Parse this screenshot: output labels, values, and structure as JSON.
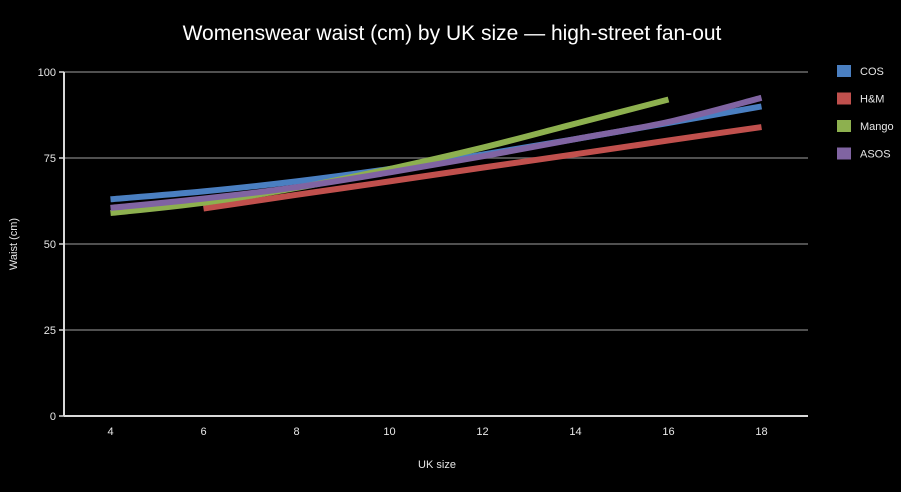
{
  "chart_data": {
    "type": "line",
    "title": "Womenswear waist (cm) by UK size — high-street fan-out",
    "xlabel": "UK size",
    "ylabel": "Waist (cm)",
    "x_ticks": [
      "4",
      "6",
      "8",
      "10",
      "12",
      "14",
      "16",
      "18"
    ],
    "y_ticks": [
      "0",
      "25",
      "50",
      "75",
      "100"
    ],
    "xlim": [
      3,
      19
    ],
    "ylim": [
      0,
      100
    ],
    "grid": true,
    "legend_position": "right",
    "series": [
      {
        "name": "COS",
        "color": "#4a7fc1",
        "points": [
          [
            4,
            63
          ],
          [
            6,
            65.3
          ],
          [
            8,
            68.2
          ],
          [
            10,
            71.8
          ],
          [
            12,
            76
          ],
          [
            14,
            80.5
          ],
          [
            16,
            85.2
          ],
          [
            18,
            90
          ]
        ]
      },
      {
        "name": "H&M",
        "color": "#c0504d",
        "points": [
          [
            6,
            60.3
          ],
          [
            8,
            64.3
          ],
          [
            10,
            68.2
          ],
          [
            12,
            72.2
          ],
          [
            14,
            76.1
          ],
          [
            16,
            80.1
          ],
          [
            18,
            84
          ]
        ]
      },
      {
        "name": "Mango",
        "color": "#8db04f",
        "points": [
          [
            4,
            59
          ],
          [
            6,
            62
          ],
          [
            8,
            66.3
          ],
          [
            10,
            71.8
          ],
          [
            12,
            78
          ],
          [
            14,
            85
          ],
          [
            16,
            92
          ]
        ]
      },
      {
        "name": "ASOS",
        "color": "#8064a2",
        "points": [
          [
            4,
            60.5
          ],
          [
            6,
            63.2
          ],
          [
            8,
            66.5
          ],
          [
            10,
            70.8
          ],
          [
            12,
            75.5
          ],
          [
            14,
            80.5
          ],
          [
            16,
            85.5
          ],
          [
            18,
            92.5
          ]
        ]
      }
    ]
  }
}
